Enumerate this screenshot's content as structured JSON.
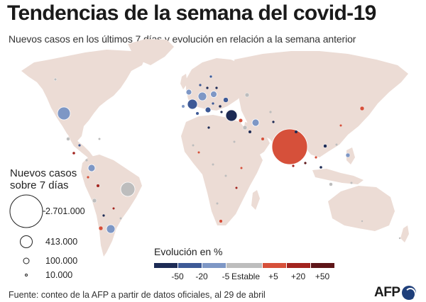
{
  "title": "Tendencias de la semana del covid-19",
  "subtitle": "Nuevos casos en los últimos 7 días y evolución en relación a la semana anterior",
  "size_legend": {
    "title_line1": "Nuevos casos",
    "title_line2": "sobre 7 días",
    "entries": [
      {
        "value": 2701000,
        "label": "2.701.000"
      },
      {
        "value": 413000,
        "label": "413.000"
      },
      {
        "value": 100000,
        "label": "100.000"
      },
      {
        "value": 10000,
        "label": "10.000"
      }
    ]
  },
  "color_legend": {
    "title": "Evolución en %",
    "ticks": [
      "-50",
      "-20",
      "-5",
      "Estable",
      "+5",
      "+20",
      "+50"
    ],
    "colors": [
      "#1d2b55",
      "#3d5996",
      "#7e97c5",
      "#bdbdbd",
      "#d6503a",
      "#a3241f",
      "#5e1518"
    ]
  },
  "bubbles": [
    {
      "region": "India",
      "color": "#d6503a",
      "size_rel": 1.0
    },
    {
      "region": "Brasil",
      "color": "#bdbdbd",
      "size_rel": 0.38
    },
    {
      "region": "Estados Unidos",
      "color": "#7e97c5",
      "size_rel": 0.35
    },
    {
      "region": "Turquía",
      "color": "#1d2b55",
      "size_rel": 0.3
    },
    {
      "region": "Francia",
      "color": "#3d5996",
      "size_rel": 0.26
    },
    {
      "region": "Argentina",
      "color": "#7e97c5",
      "size_rel": 0.24
    }
  ],
  "source": "Fuente: conteo de la AFP a partir de datos oficiales, al 29 de abril",
  "logo_text": "AFP",
  "logo_icon": "afp-globe-icon"
}
